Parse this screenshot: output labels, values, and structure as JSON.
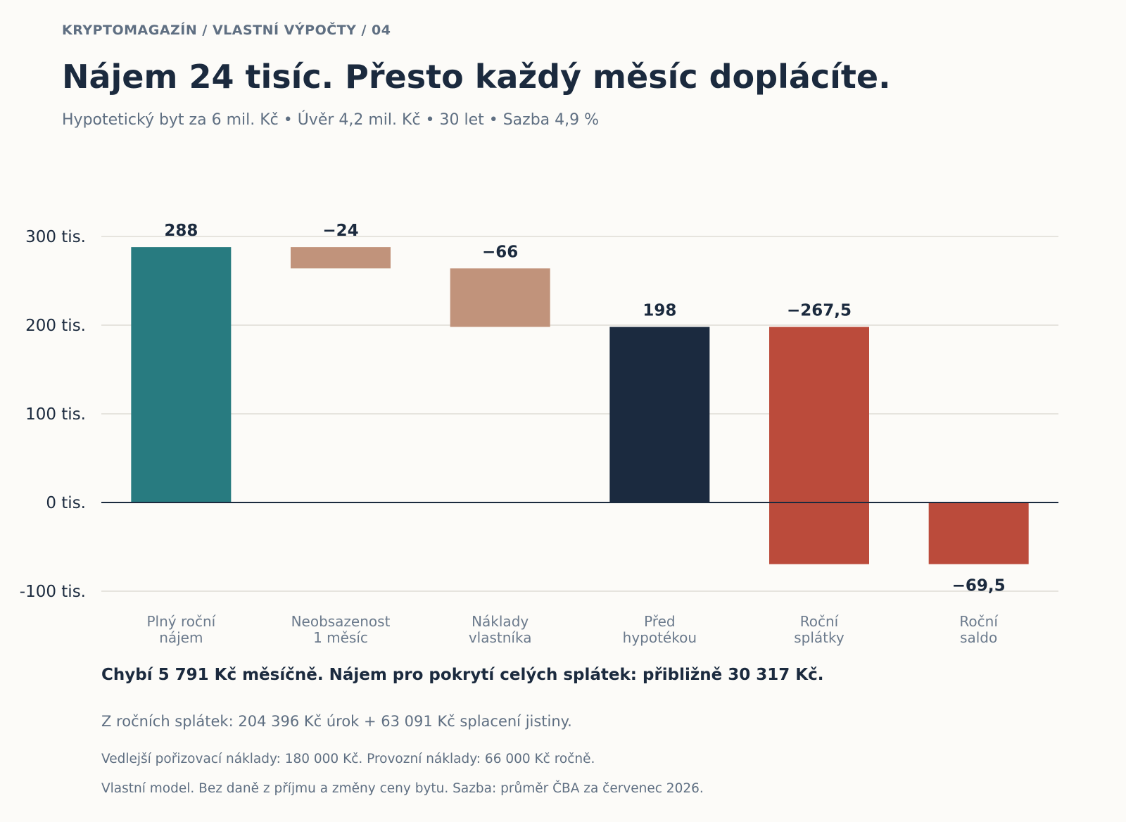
{
  "header": {
    "kicker": "KRYPTOMAGAZÍN  /  VLASTNÍ VÝPOČTY  /  04",
    "title": "Nájem 24 tisíc. Přesto každý měsíc doplácíte.",
    "subtitle": "Hypotetický byt za 6 mil. Kč  •  Úvěr 4,2 mil. Kč  •  30 let  •  Sazba 4,9 %"
  },
  "chart_data": {
    "type": "waterfall",
    "title": "",
    "xlabel": "",
    "ylabel": "",
    "ylim": [
      -100,
      300
    ],
    "yticks": [
      300,
      200,
      100,
      0,
      -100
    ],
    "ytick_labels": [
      "300 tis.",
      "200 tis.",
      "100 tis.",
      "0 tis.",
      "-100 tis."
    ],
    "grid": true,
    "categories": [
      "Plný roční\nnájem",
      "Neobsazenost\n1 měsíc",
      "Náklady\nvlastníka",
      "Před\nhypotékou",
      "Roční\nsplátky",
      "Roční\nsaldo"
    ],
    "bars": [
      {
        "start": 0,
        "end": 288,
        "label": "288",
        "kind": "total",
        "color": "#287b80"
      },
      {
        "start": 288,
        "end": 264,
        "label": "−24",
        "kind": "decrease",
        "color": "#c1937b"
      },
      {
        "start": 264,
        "end": 198,
        "label": "−66",
        "kind": "decrease",
        "color": "#c1937b"
      },
      {
        "start": 0,
        "end": 198,
        "label": "198",
        "kind": "subtotal",
        "color": "#1b2a3f"
      },
      {
        "start": 198,
        "end": -69.5,
        "label": "−267,5",
        "kind": "decrease",
        "color": "#bb4b3b"
      },
      {
        "start": 0,
        "end": -69.5,
        "label": "−69,5",
        "kind": "total",
        "color": "#bb4b3b"
      }
    ]
  },
  "notes": {
    "main": "Chybí 5 791 Kč měsíčně. Nájem pro pokrytí celých splátek: přibližně 30 317 Kč.",
    "line1": "Z ročních splátek: 204 396 Kč úrok + 63 091 Kč splacení jistiny.",
    "line2": "Vedlejší pořizovací náklady: 180 000 Kč. Provozní náklady: 66 000 Kč ročně.",
    "line3": "Vlastní model. Bez daně z příjmu a změny ceny bytu. Sazba: průměr ČBA za červenec 2026."
  }
}
